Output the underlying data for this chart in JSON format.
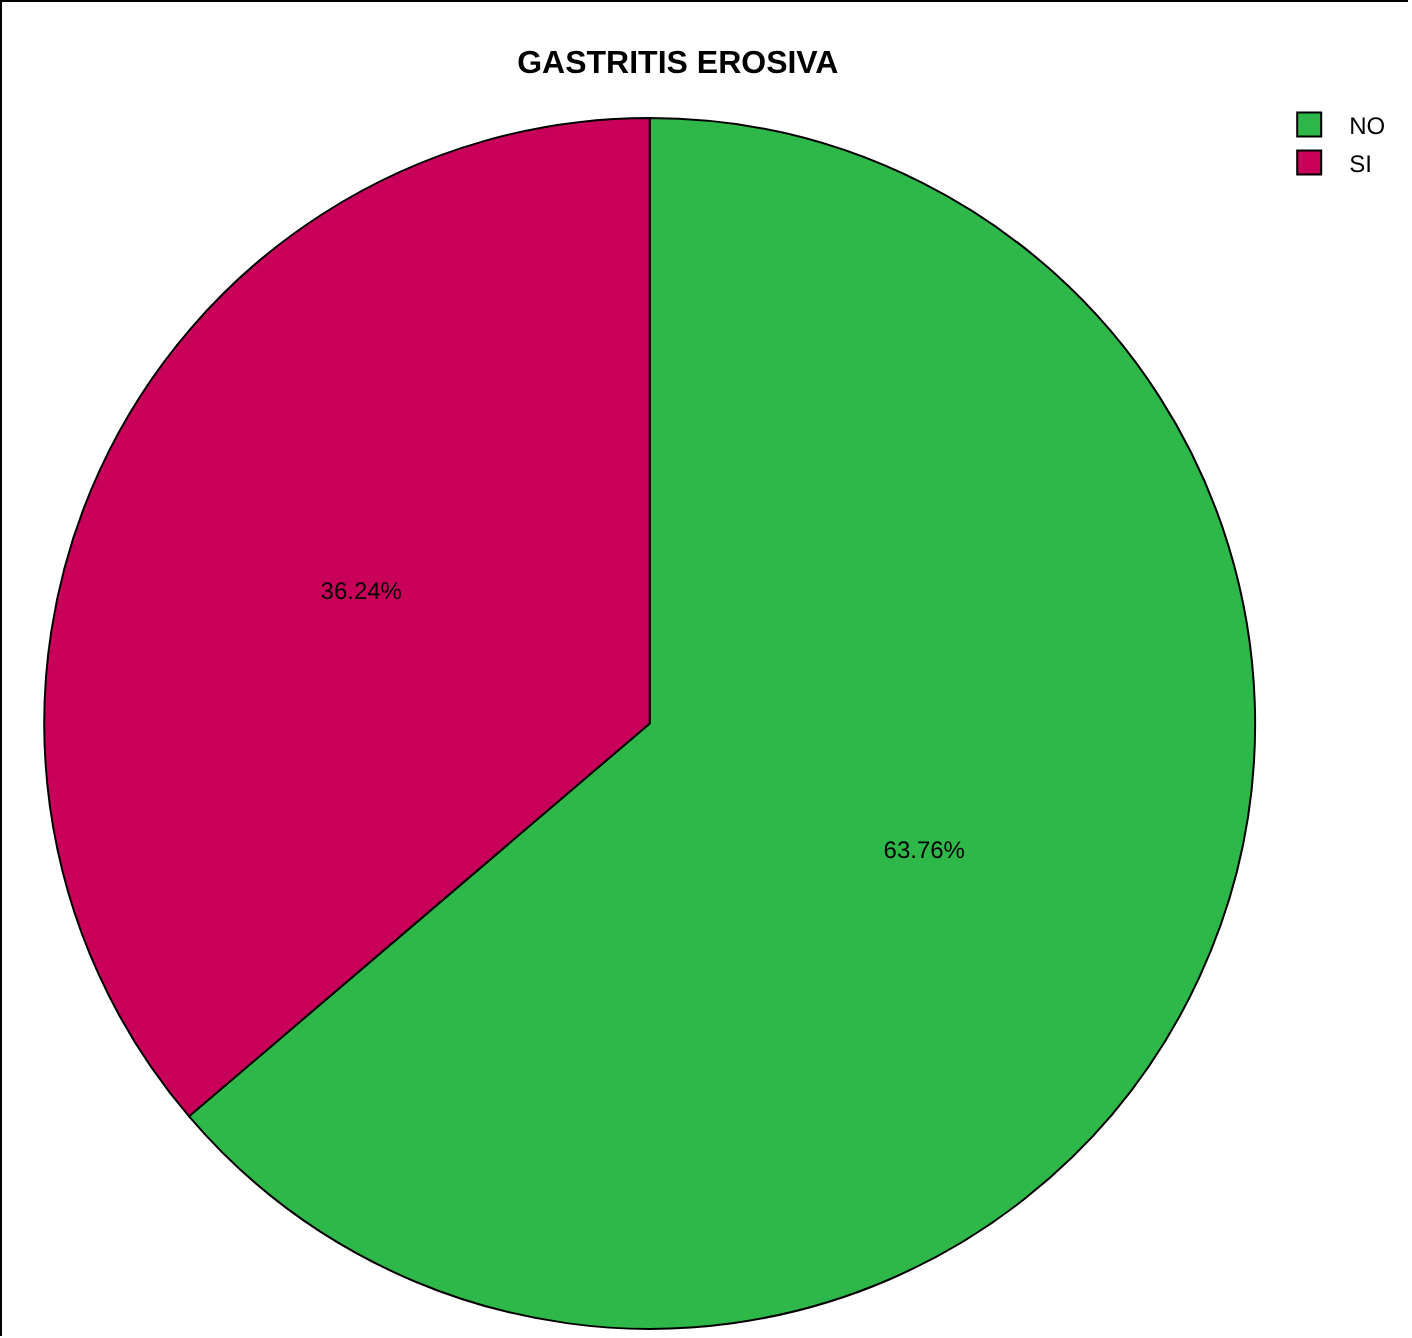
{
  "chart_data": {
    "type": "pie",
    "title": "GASTRITIS EROSIVA",
    "categories": [
      "NO",
      "SI"
    ],
    "values": [
      63.76,
      36.24
    ],
    "colors": [
      "#2fb84a",
      "#c8005a"
    ],
    "value_labels": [
      "63.76%",
      "36.24%"
    ],
    "legend": "top right"
  }
}
